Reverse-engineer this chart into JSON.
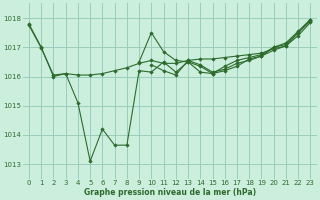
{
  "background_color": "#cceedd",
  "grid_color": "#99ccbb",
  "line_color": "#2d6b2d",
  "xlabel": "Graphe pression niveau de la mer (hPa)",
  "xlim": [
    -0.5,
    23.5
  ],
  "ylim": [
    1012.5,
    1018.5
  ],
  "yticks": [
    1013,
    1014,
    1015,
    1016,
    1017,
    1018
  ],
  "xticks": [
    0,
    1,
    2,
    3,
    4,
    5,
    6,
    7,
    8,
    9,
    10,
    11,
    12,
    13,
    14,
    15,
    16,
    17,
    18,
    19,
    20,
    21,
    22,
    23
  ],
  "series": [
    [
      1017.8,
      1017.0,
      1016.0,
      1016.1,
      1015.1,
      1013.1,
      1014.2,
      1013.65,
      1013.65,
      1016.2,
      1016.15,
      1016.5,
      1016.15,
      1016.5,
      1016.15,
      1016.1,
      1016.2,
      1016.35,
      1016.6,
      1016.7,
      1017.0,
      1017.1,
      1017.5,
      1017.95
    ],
    [
      1017.75,
      1016.98,
      1016.05,
      1016.1,
      1016.05,
      1016.05,
      1016.1,
      1016.2,
      1016.3,
      1016.45,
      1016.55,
      1016.45,
      1016.45,
      1016.55,
      1016.6,
      1016.6,
      1016.65,
      1016.7,
      1016.75,
      1016.8,
      1016.95,
      1017.05,
      1017.5,
      1017.9
    ],
    [
      null,
      null,
      null,
      null,
      null,
      null,
      null,
      null,
      null,
      1016.5,
      1017.5,
      1016.85,
      1016.55,
      1016.5,
      1016.35,
      1016.1,
      1016.35,
      1016.55,
      1016.65,
      1016.75,
      1017.0,
      1017.15,
      1017.55,
      1017.95
    ],
    [
      null,
      null,
      null,
      null,
      null,
      null,
      null,
      null,
      null,
      null,
      1016.4,
      1016.2,
      1016.05,
      1016.55,
      1016.4,
      1016.15,
      1016.25,
      1016.45,
      1016.55,
      1016.7,
      1016.9,
      1017.05,
      1017.4,
      1017.85
    ]
  ]
}
